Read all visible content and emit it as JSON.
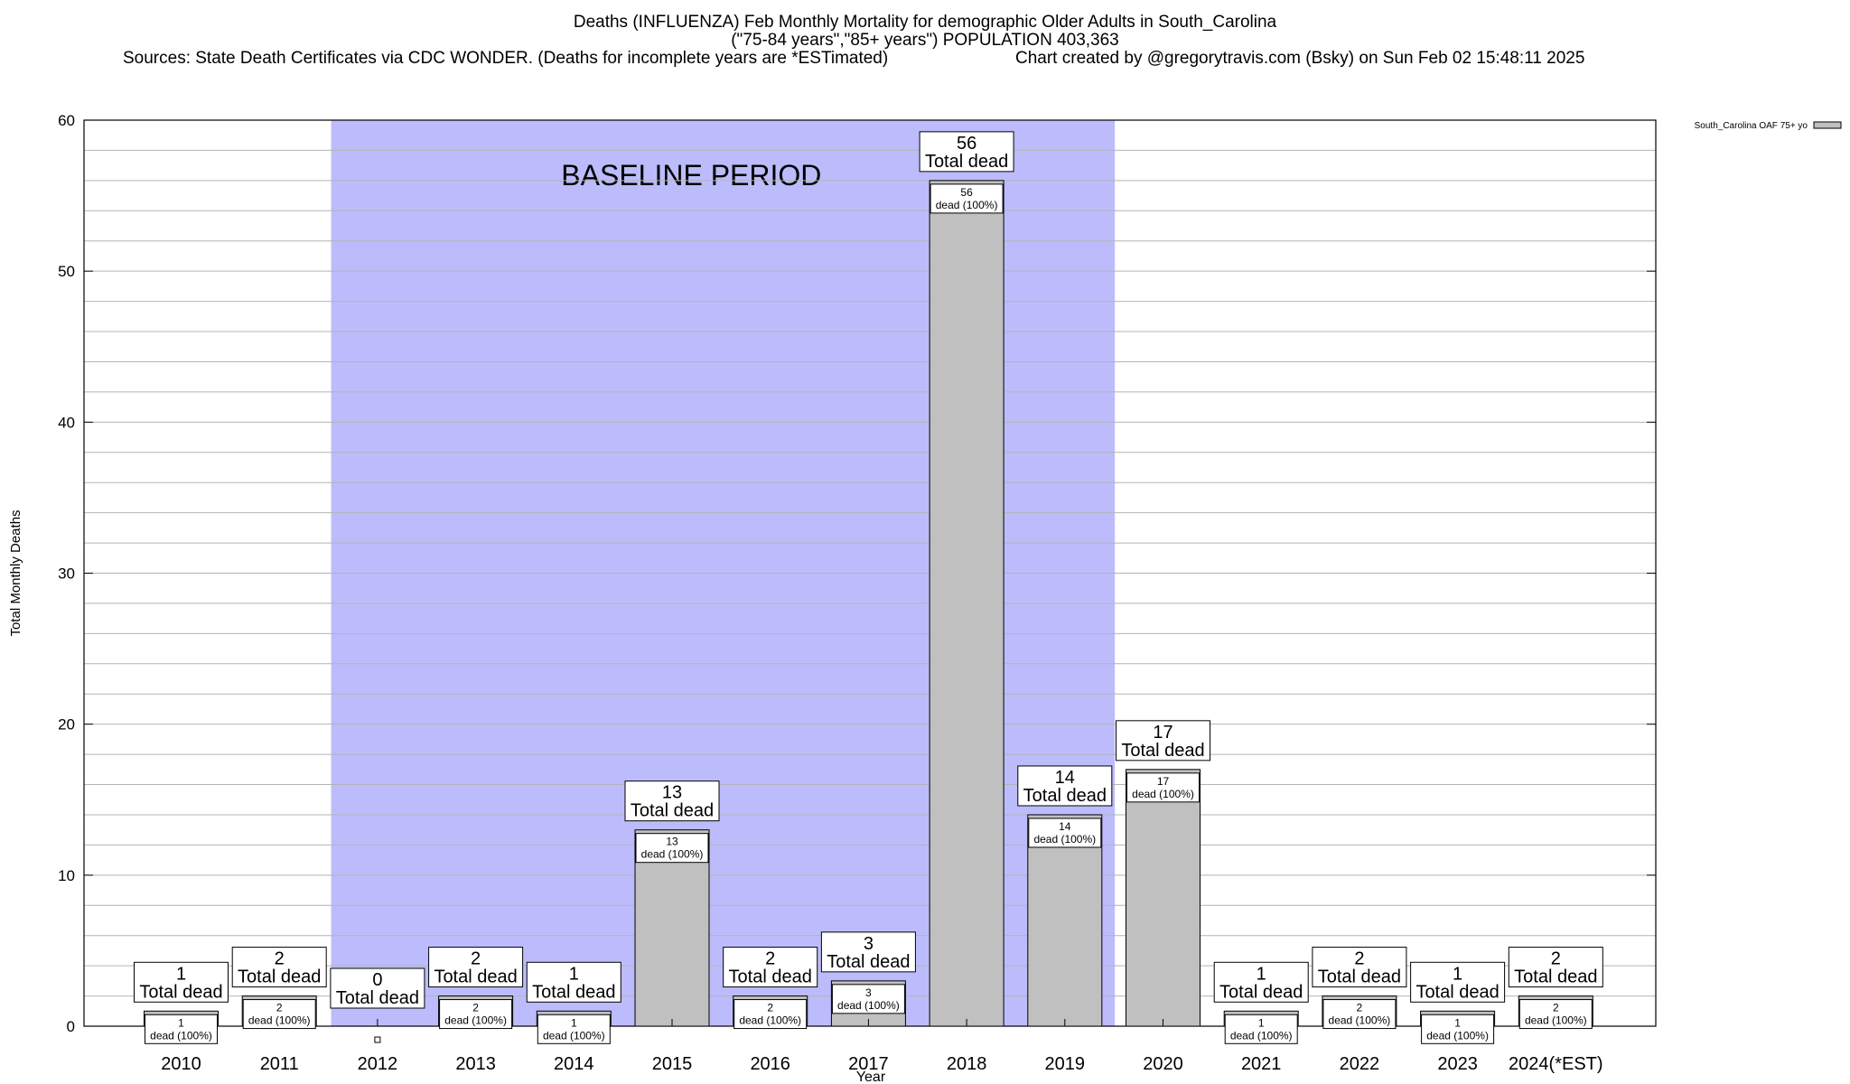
{
  "header": {
    "title": "Deaths (INFLUENZA) Feb Monthly Mortality for demographic Older Adults in South_Carolina",
    "subtitle": "(\"75-84 years\",\"85+ years\") POPULATION 403,363",
    "sources": "Sources: State Death Certificates via CDC WONDER. (Deaths for incomplete years are *ESTimated)",
    "credit": "Chart created by @gregorytravis.com (Bsky) on Sun Feb 02 15:48:11 2025"
  },
  "chart_data": {
    "type": "bar",
    "xlabel": "Year",
    "ylabel": "Total Monthly Deaths",
    "ylim": [
      0,
      60
    ],
    "yticks": [
      0,
      10,
      20,
      30,
      40,
      50,
      60
    ],
    "categories": [
      "2010",
      "2011",
      "2012",
      "2013",
      "2014",
      "2015",
      "2016",
      "2017",
      "2018",
      "2019",
      "2020",
      "2021",
      "2022",
      "2023",
      "2024(*EST)"
    ],
    "series": [
      {
        "name": "South_Carolina OAF 75+ yo",
        "values": [
          1,
          2,
          0,
          2,
          1,
          13,
          2,
          3,
          56,
          14,
          17,
          1,
          2,
          1,
          2
        ]
      }
    ],
    "total_label": "Total dead",
    "segment_label": "dead (100%)",
    "baseline": {
      "label": "BASELINE PERIOD",
      "start": "2012",
      "end": "2019",
      "color": "#bcbcfc"
    },
    "bar_color": "#c0c0c0",
    "legend_placement": "top-right",
    "grid": true
  }
}
